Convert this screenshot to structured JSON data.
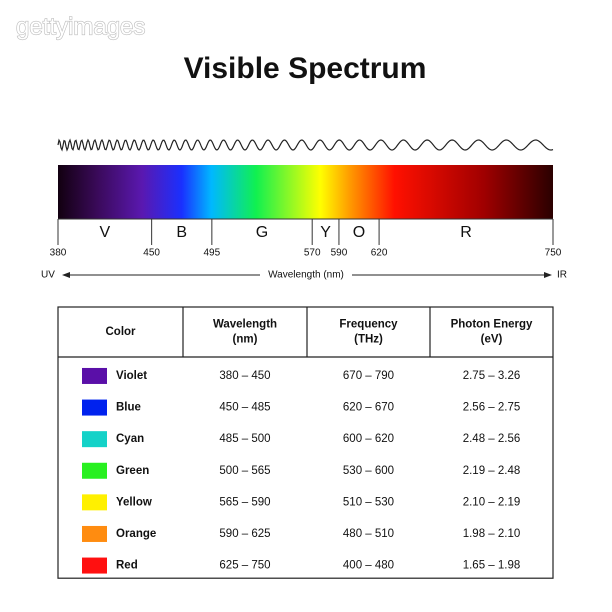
{
  "watermark": "gettyimages",
  "title": "Visible Spectrum",
  "spectrum": {
    "xlim": [
      380,
      750
    ],
    "ticks": [
      380,
      450,
      495,
      570,
      590,
      620,
      750
    ],
    "bands": [
      "V",
      "B",
      "G",
      "Y",
      "O",
      "R"
    ],
    "left_label": "UV",
    "axis_label": "Wavelength (nm)",
    "right_label": "IR"
  },
  "table": {
    "headers": [
      "Color",
      "Wavelength\n(nm)",
      "Frequency\n(THz)",
      "Photon Energy\n(eV)"
    ],
    "rows": [
      {
        "color": "#5a0fa8",
        "name": "Violet",
        "cells": [
          "380 – 450",
          "670 – 790",
          "2.75 – 3.26"
        ]
      },
      {
        "color": "#0022ee",
        "name": "Blue",
        "cells": [
          "450 – 485",
          "620 – 670",
          "2.56 – 2.75"
        ]
      },
      {
        "color": "#14d2c8",
        "name": "Cyan",
        "cells": [
          "485 – 500",
          "600 – 620",
          "2.48 – 2.56"
        ]
      },
      {
        "color": "#28f020",
        "name": "Green",
        "cells": [
          "500 – 565",
          "530 – 600",
          "2.19 – 2.48"
        ]
      },
      {
        "color": "#fff000",
        "name": "Yellow",
        "cells": [
          "565 – 590",
          "510 – 530",
          "2.10 – 2.19"
        ]
      },
      {
        "color": "#ff8c10",
        "name": "Orange",
        "cells": [
          "590 – 625",
          "480 – 510",
          "1.98 – 2.10"
        ]
      },
      {
        "color": "#ff1010",
        "name": "Red",
        "cells": [
          "625 – 750",
          "400 – 480",
          "1.65 – 1.98"
        ]
      }
    ]
  }
}
